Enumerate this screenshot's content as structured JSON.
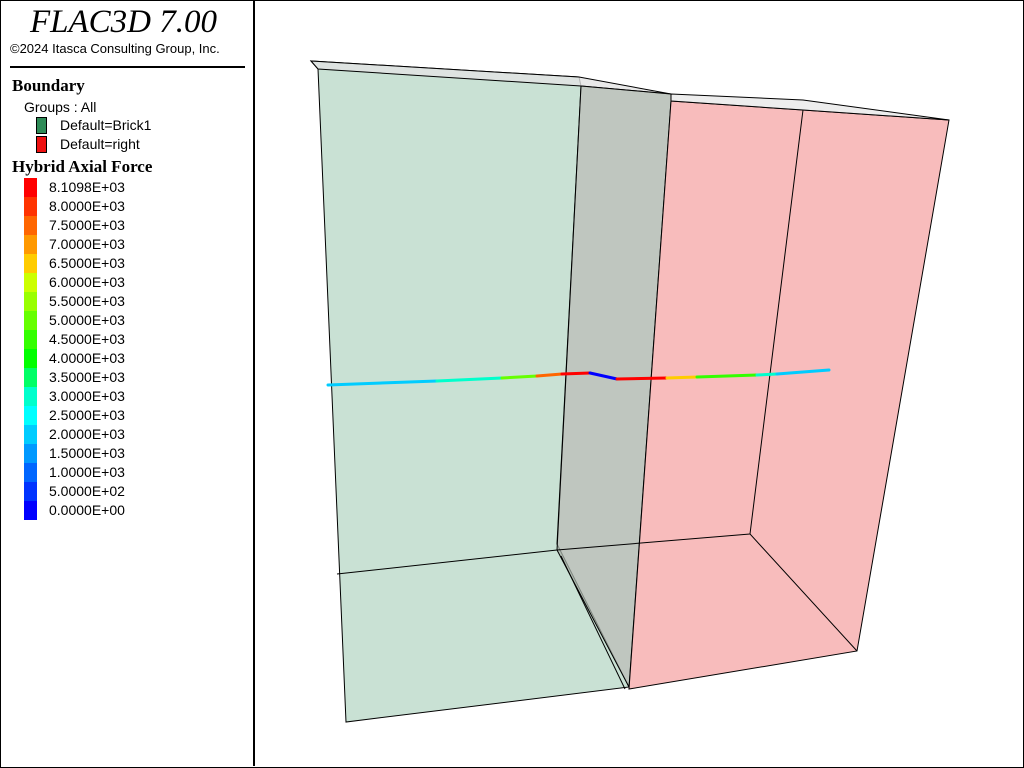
{
  "app": {
    "title": "FLAC3D 7.00",
    "copyright": "©2024 Itasca Consulting Group, Inc."
  },
  "legend": {
    "boundary_heading": "Boundary",
    "groups_line": "Groups : All",
    "groups": [
      {
        "label": "Default=Brick1",
        "color": "#2e8b57"
      },
      {
        "label": "Default=right",
        "color": "#ee1111"
      }
    ],
    "axial_heading": "Hybrid Axial Force",
    "contours": [
      {
        "label": "8.1098E+03",
        "color": "#ff0000"
      },
      {
        "label": "8.0000E+03",
        "color": "#ff3300"
      },
      {
        "label": "7.5000E+03",
        "color": "#ff6600"
      },
      {
        "label": "7.0000E+03",
        "color": "#ff9900"
      },
      {
        "label": "6.5000E+03",
        "color": "#ffcc00"
      },
      {
        "label": "6.0000E+03",
        "color": "#ccff00"
      },
      {
        "label": "5.5000E+03",
        "color": "#99ff00"
      },
      {
        "label": "5.0000E+03",
        "color": "#66ff00"
      },
      {
        "label": "4.5000E+03",
        "color": "#33ff00"
      },
      {
        "label": "4.0000E+03",
        "color": "#00ff00"
      },
      {
        "label": "3.5000E+03",
        "color": "#00ff66"
      },
      {
        "label": "3.0000E+03",
        "color": "#00ffcc"
      },
      {
        "label": "2.5000E+03",
        "color": "#00ffff"
      },
      {
        "label": "2.0000E+03",
        "color": "#00ccff"
      },
      {
        "label": "1.5000E+03",
        "color": "#0099ff"
      },
      {
        "label": "1.0000E+03",
        "color": "#0066ff"
      },
      {
        "label": "5.0000E+02",
        "color": "#0033ff"
      },
      {
        "label": "0.0000E+00",
        "color": "#0000ff"
      }
    ]
  },
  "model": {
    "brick1_fill": "#b7d7c5",
    "right_fill": "#f7b0b0",
    "edge_color": "#000000"
  }
}
